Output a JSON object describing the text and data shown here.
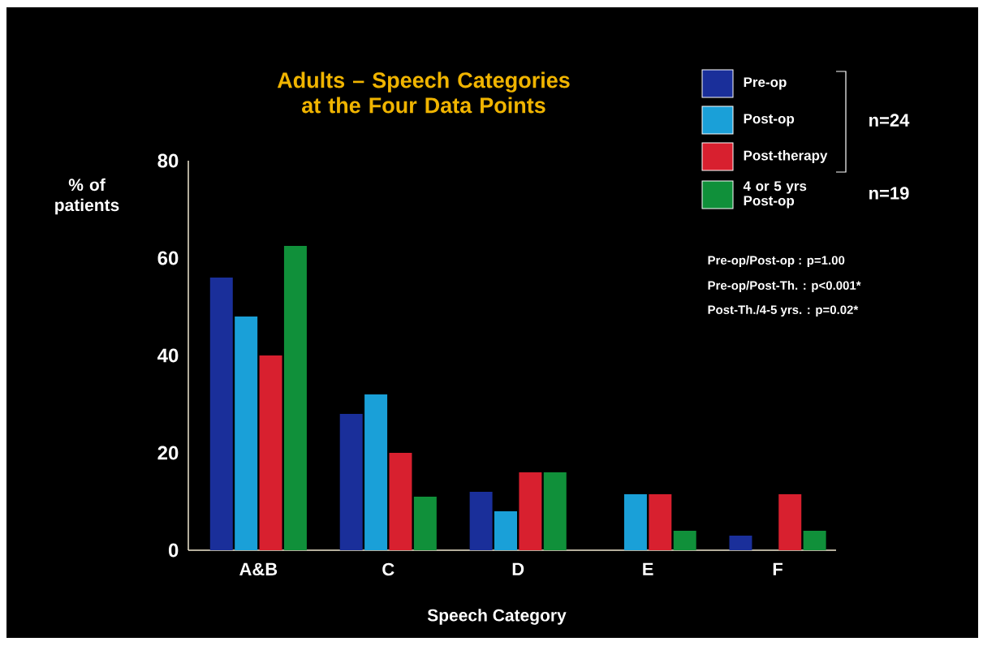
{
  "chart_data": {
    "type": "bar",
    "title": "Adults – Speech Categories at the Four Data Points",
    "xlabel": "Speech Category",
    "ylabel": "% of patients",
    "categories": [
      "A&B",
      "C",
      "D",
      "E",
      "F"
    ],
    "series": [
      {
        "name": "Pre-op",
        "color": "#1a2f9a",
        "values": [
          56,
          28,
          12,
          0,
          3
        ]
      },
      {
        "name": "Post-op",
        "color": "#1aa0d8",
        "values": [
          48,
          32,
          8,
          11.5,
          0
        ]
      },
      {
        "name": "Post-therapy",
        "color": "#d8202f",
        "values": [
          40,
          20,
          16,
          11.5,
          11.5
        ]
      },
      {
        "name": "4 or 5 yrs Post-op",
        "color": "#10903a",
        "values": [
          62.5,
          11,
          16,
          4,
          4
        ]
      }
    ],
    "ylim": [
      0,
      80
    ],
    "yticks": [
      0,
      20,
      40,
      60,
      80
    ],
    "legend": "top right",
    "annotations": [
      "n=24",
      "n=19",
      "Pre-op/Post-op : p=1.00",
      "Pre-op/Post-Th. : p<0.001*",
      "Post-Th./4-5 yrs. : p=0.02*"
    ]
  }
}
